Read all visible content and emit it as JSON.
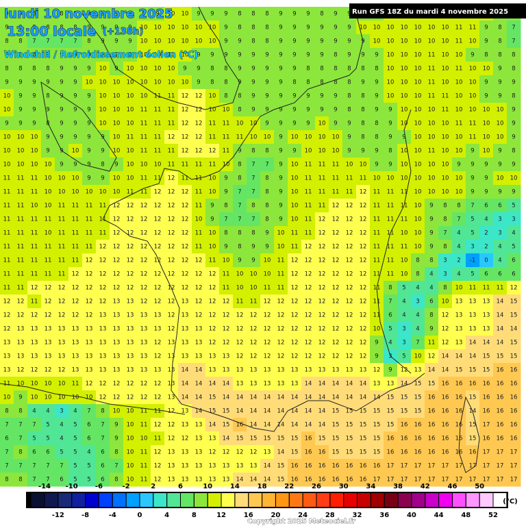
{
  "header": {
    "date": "lundi 10 novembre 2025",
    "time": "13:00 locale",
    "lead": "(+138h)",
    "parameter": "Windchill / Refroidissement éolien (°C)",
    "run": "Run GFS 18Z du mardi 4 novembre 2025"
  },
  "legend": {
    "labels": [
      -14,
      -12,
      -10,
      -8,
      -6,
      -4,
      -2,
      0,
      2,
      4,
      6,
      8,
      10,
      12,
      14,
      16,
      18,
      20,
      22,
      24,
      26,
      28,
      30,
      32,
      34,
      36,
      38,
      40,
      42,
      44,
      46,
      48,
      50,
      52
    ],
    "colors": [
      "#0a1030",
      "#101850",
      "#182a78",
      "#1020a0",
      "#0000d0",
      "#0040ff",
      "#0070ff",
      "#00a0ff",
      "#28c8ff",
      "#3ce6c8",
      "#50e696",
      "#64e664",
      "#8ce63c",
      "#d2f000",
      "#ffff50",
      "#ffdc78",
      "#ffc850",
      "#ffb432",
      "#ff9614",
      "#ff7814",
      "#ff5a14",
      "#ff3c14",
      "#ff1e00",
      "#e60000",
      "#c80000",
      "#a00000",
      "#780014",
      "#8c0050",
      "#a0008c",
      "#c800c8",
      "#f000f0",
      "#ff50ff",
      "#ff96ff",
      "#ffc8ff",
      "#ffffff"
    ],
    "unit": "(°C)"
  },
  "grid": {
    "rows": [
      [
        9,
        9,
        8,
        8,
        8,
        9,
        9,
        9,
        9,
        9,
        9,
        9,
        10,
        10,
        9,
        9,
        9,
        8,
        8,
        8,
        9,
        9,
        9,
        8,
        9,
        9,
        9,
        9,
        10,
        10,
        10,
        10,
        10,
        11,
        11,
        10,
        9,
        8
      ],
      [
        9,
        9,
        8,
        8,
        8,
        8,
        9,
        9,
        9,
        9,
        10,
        10,
        10,
        10,
        10,
        10,
        9,
        8,
        8,
        8,
        9,
        9,
        9,
        9,
        9,
        9,
        10,
        10,
        10,
        10,
        10,
        10,
        10,
        11,
        11,
        9,
        8,
        7
      ],
      [
        8,
        8,
        7,
        7,
        7,
        7,
        8,
        9,
        9,
        9,
        10,
        10,
        10,
        10,
        10,
        10,
        9,
        9,
        8,
        8,
        9,
        9,
        9,
        9,
        9,
        9,
        9,
        10,
        10,
        10,
        10,
        10,
        10,
        11,
        10,
        9,
        8,
        7
      ],
      [
        8,
        8,
        8,
        9,
        9,
        9,
        9,
        9,
        9,
        9,
        10,
        10,
        10,
        10,
        9,
        9,
        9,
        9,
        9,
        9,
        9,
        9,
        9,
        9,
        8,
        9,
        9,
        9,
        10,
        10,
        10,
        11,
        10,
        10,
        9,
        8,
        8,
        8
      ],
      [
        8,
        8,
        8,
        8,
        9,
        9,
        9,
        10,
        9,
        10,
        10,
        10,
        10,
        9,
        9,
        8,
        8,
        9,
        9,
        9,
        9,
        9,
        8,
        8,
        8,
        8,
        8,
        8,
        10,
        10,
        10,
        11,
        10,
        11,
        10,
        10,
        9,
        8
      ],
      [
        9,
        9,
        9,
        9,
        9,
        9,
        10,
        10,
        10,
        10,
        10,
        10,
        10,
        10,
        9,
        8,
        8,
        9,
        9,
        9,
        9,
        8,
        8,
        8,
        8,
        8,
        9,
        9,
        10,
        10,
        10,
        11,
        10,
        10,
        10,
        9,
        9,
        9
      ],
      [
        10,
        9,
        9,
        8,
        9,
        9,
        9,
        10,
        10,
        10,
        10,
        11,
        11,
        12,
        12,
        10,
        8,
        8,
        9,
        9,
        9,
        9,
        9,
        9,
        9,
        8,
        8,
        9,
        10,
        10,
        10,
        11,
        11,
        10,
        10,
        9,
        9,
        8
      ],
      [
        10,
        9,
        9,
        9,
        9,
        9,
        9,
        10,
        10,
        10,
        11,
        11,
        11,
        12,
        12,
        10,
        10,
        8,
        9,
        9,
        9,
        9,
        9,
        9,
        9,
        8,
        8,
        9,
        9,
        10,
        10,
        10,
        11,
        10,
        10,
        10,
        10,
        9
      ],
      [
        9,
        9,
        9,
        8,
        9,
        9,
        9,
        10,
        10,
        10,
        11,
        11,
        11,
        12,
        12,
        11,
        11,
        10,
        10,
        9,
        9,
        9,
        9,
        10,
        9,
        9,
        8,
        8,
        9,
        10,
        10,
        10,
        10,
        11,
        11,
        10,
        10,
        9
      ],
      [
        10,
        10,
        10,
        9,
        9,
        9,
        9,
        9,
        10,
        11,
        11,
        11,
        12,
        12,
        12,
        11,
        11,
        11,
        10,
        10,
        9,
        10,
        10,
        10,
        10,
        9,
        8,
        8,
        9,
        9,
        10,
        10,
        10,
        10,
        11,
        10,
        10,
        9
      ],
      [
        10,
        10,
        10,
        9,
        9,
        10,
        9,
        9,
        10,
        10,
        11,
        11,
        11,
        12,
        12,
        12,
        11,
        9,
        8,
        8,
        9,
        9,
        10,
        10,
        10,
        9,
        9,
        9,
        8,
        10,
        10,
        11,
        10,
        10,
        9,
        10,
        9,
        8
      ],
      [
        10,
        10,
        10,
        10,
        9,
        9,
        9,
        8,
        9,
        10,
        10,
        10,
        11,
        11,
        11,
        11,
        10,
        8,
        7,
        7,
        9,
        10,
        11,
        11,
        11,
        10,
        10,
        9,
        9,
        10,
        10,
        10,
        10,
        9,
        9,
        9,
        9,
        9
      ],
      [
        11,
        11,
        11,
        10,
        10,
        10,
        9,
        9,
        10,
        10,
        11,
        11,
        12,
        11,
        11,
        10,
        9,
        8,
        7,
        8,
        9,
        10,
        11,
        11,
        11,
        11,
        11,
        10,
        10,
        10,
        10,
        10,
        10,
        10,
        9,
        9,
        10,
        10
      ],
      [
        11,
        11,
        11,
        10,
        10,
        10,
        10,
        10,
        10,
        11,
        11,
        12,
        12,
        12,
        11,
        10,
        9,
        7,
        7,
        8,
        9,
        10,
        11,
        11,
        11,
        11,
        12,
        11,
        11,
        11,
        10,
        10,
        10,
        10,
        9,
        9,
        9,
        9
      ],
      [
        11,
        11,
        10,
        10,
        11,
        11,
        11,
        11,
        12,
        12,
        12,
        12,
        12,
        12,
        11,
        9,
        8,
        7,
        8,
        8,
        9,
        10,
        11,
        11,
        12,
        12,
        12,
        11,
        11,
        11,
        10,
        9,
        8,
        8,
        7,
        6,
        6,
        5
      ],
      [
        11,
        11,
        11,
        11,
        11,
        11,
        11,
        11,
        12,
        12,
        12,
        12,
        12,
        12,
        10,
        9,
        7,
        7,
        7,
        8,
        9,
        10,
        11,
        12,
        12,
        12,
        12,
        11,
        11,
        11,
        10,
        9,
        8,
        7,
        5,
        4,
        3,
        3
      ],
      [
        11,
        11,
        11,
        10,
        11,
        11,
        11,
        11,
        12,
        12,
        12,
        12,
        12,
        12,
        11,
        10,
        8,
        8,
        8,
        9,
        10,
        11,
        11,
        12,
        12,
        12,
        12,
        11,
        11,
        10,
        10,
        9,
        7,
        4,
        5,
        2,
        3,
        4
      ],
      [
        11,
        11,
        11,
        11,
        11,
        11,
        11,
        12,
        12,
        12,
        12,
        12,
        12,
        12,
        11,
        10,
        9,
        8,
        9,
        9,
        10,
        11,
        12,
        12,
        12,
        12,
        12,
        11,
        11,
        11,
        10,
        9,
        8,
        4,
        3,
        2,
        4,
        5
      ],
      [
        11,
        11,
        11,
        11,
        11,
        11,
        12,
        12,
        12,
        12,
        12,
        12,
        12,
        12,
        12,
        11,
        10,
        9,
        9,
        10,
        11,
        12,
        12,
        12,
        12,
        12,
        12,
        11,
        11,
        10,
        8,
        8,
        3,
        2,
        -1,
        0,
        4,
        6
      ],
      [
        11,
        11,
        11,
        11,
        11,
        12,
        12,
        12,
        12,
        12,
        12,
        12,
        12,
        12,
        12,
        12,
        11,
        10,
        10,
        10,
        11,
        12,
        12,
        12,
        12,
        12,
        12,
        11,
        11,
        10,
        8,
        4,
        3,
        4,
        5,
        6,
        6,
        6
      ],
      [
        11,
        11,
        12,
        12,
        12,
        12,
        12,
        12,
        12,
        12,
        12,
        12,
        12,
        12,
        12,
        12,
        11,
        10,
        10,
        11,
        11,
        12,
        12,
        12,
        12,
        12,
        12,
        11,
        8,
        5,
        4,
        4,
        8,
        10,
        11,
        11,
        11,
        12
      ],
      [
        12,
        12,
        11,
        12,
        12,
        12,
        12,
        12,
        13,
        13,
        12,
        12,
        12,
        13,
        12,
        12,
        12,
        11,
        11,
        12,
        12,
        12,
        12,
        12,
        12,
        12,
        12,
        11,
        7,
        4,
        3,
        6,
        10,
        13,
        13,
        13,
        14,
        15
      ],
      [
        12,
        12,
        12,
        12,
        12,
        12,
        12,
        13,
        13,
        13,
        13,
        13,
        12,
        13,
        12,
        12,
        12,
        12,
        12,
        12,
        12,
        12,
        12,
        12,
        12,
        12,
        12,
        11,
        6,
        4,
        4,
        8,
        12,
        13,
        13,
        13,
        14,
        15
      ],
      [
        12,
        13,
        13,
        13,
        13,
        13,
        13,
        13,
        13,
        13,
        13,
        13,
        12,
        13,
        13,
        12,
        12,
        12,
        12,
        12,
        12,
        12,
        12,
        12,
        12,
        12,
        12,
        10,
        5,
        3,
        4,
        9,
        12,
        13,
        13,
        13,
        14,
        14
      ],
      [
        13,
        13,
        13,
        13,
        13,
        13,
        13,
        13,
        13,
        13,
        13,
        12,
        13,
        13,
        13,
        12,
        12,
        12,
        12,
        12,
        12,
        12,
        12,
        12,
        12,
        12,
        12,
        9,
        4,
        3,
        7,
        11,
        12,
        13,
        14,
        14,
        14,
        15
      ],
      [
        13,
        13,
        13,
        13,
        13,
        13,
        13,
        13,
        13,
        13,
        13,
        12,
        13,
        13,
        13,
        13,
        13,
        12,
        12,
        12,
        12,
        12,
        12,
        12,
        12,
        12,
        12,
        9,
        3,
        5,
        10,
        12,
        14,
        14,
        14,
        15,
        15,
        15
      ],
      [
        13,
        12,
        12,
        12,
        12,
        13,
        13,
        13,
        13,
        13,
        13,
        13,
        13,
        14,
        14,
        13,
        13,
        13,
        13,
        13,
        13,
        13,
        13,
        13,
        13,
        13,
        13,
        12,
        9,
        12,
        13,
        14,
        14,
        15,
        15,
        15,
        16,
        16
      ],
      [
        11,
        10,
        10,
        10,
        10,
        11,
        12,
        12,
        12,
        12,
        12,
        12,
        13,
        14,
        14,
        14,
        14,
        13,
        13,
        13,
        13,
        13,
        14,
        14,
        14,
        14,
        14,
        13,
        13,
        14,
        15,
        15,
        16,
        16,
        16,
        16,
        16,
        16
      ],
      [
        10,
        9,
        10,
        10,
        10,
        10,
        10,
        12,
        12,
        12,
        12,
        12,
        13,
        14,
        14,
        15,
        14,
        14,
        14,
        14,
        14,
        14,
        14,
        14,
        14,
        14,
        14,
        14,
        15,
        15,
        15,
        16,
        16,
        16,
        15,
        16,
        16,
        16
      ],
      [
        8,
        8,
        4,
        4,
        3,
        4,
        7,
        8,
        10,
        10,
        11,
        11,
        12,
        13,
        14,
        15,
        15,
        14,
        14,
        14,
        14,
        14,
        14,
        14,
        15,
        15,
        15,
        15,
        15,
        15,
        15,
        16,
        16,
        16,
        14,
        16,
        16,
        16
      ],
      [
        7,
        7,
        7,
        5,
        4,
        5,
        6,
        7,
        9,
        10,
        11,
        12,
        12,
        13,
        13,
        14,
        15,
        16,
        14,
        14,
        14,
        14,
        14,
        14,
        15,
        15,
        15,
        15,
        15,
        16,
        16,
        16,
        16,
        16,
        15,
        17,
        16,
        16
      ],
      [
        6,
        7,
        5,
        5,
        4,
        5,
        6,
        7,
        9,
        10,
        10,
        11,
        12,
        12,
        13,
        13,
        14,
        15,
        15,
        15,
        15,
        15,
        16,
        15,
        15,
        15,
        15,
        15,
        16,
        16,
        16,
        16,
        16,
        16,
        15,
        16,
        16,
        16
      ],
      [
        7,
        8,
        6,
        6,
        5,
        5,
        4,
        6,
        8,
        10,
        11,
        12,
        13,
        13,
        13,
        12,
        12,
        12,
        12,
        13,
        14,
        15,
        16,
        16,
        15,
        15,
        15,
        15,
        16,
        16,
        16,
        16,
        16,
        16,
        16,
        17,
        17,
        17
      ],
      [
        7,
        7,
        7,
        7,
        7,
        5,
        5,
        6,
        7,
        10,
        11,
        12,
        13,
        13,
        13,
        13,
        13,
        13,
        13,
        14,
        15,
        16,
        16,
        16,
        16,
        16,
        16,
        16,
        17,
        17,
        17,
        17,
        17,
        17,
        17,
        17,
        17,
        17
      ],
      [
        8,
        8,
        7,
        7,
        6,
        5,
        5,
        6,
        8,
        10,
        11,
        12,
        13,
        13,
        13,
        13,
        13,
        14,
        14,
        14,
        15,
        16,
        16,
        16,
        16,
        16,
        16,
        17,
        17,
        17,
        17,
        17,
        17,
        17,
        17,
        17,
        17,
        17
      ]
    ]
  },
  "footer": {
    "copyright": "Copyright 2025 Meteociel.fr"
  }
}
